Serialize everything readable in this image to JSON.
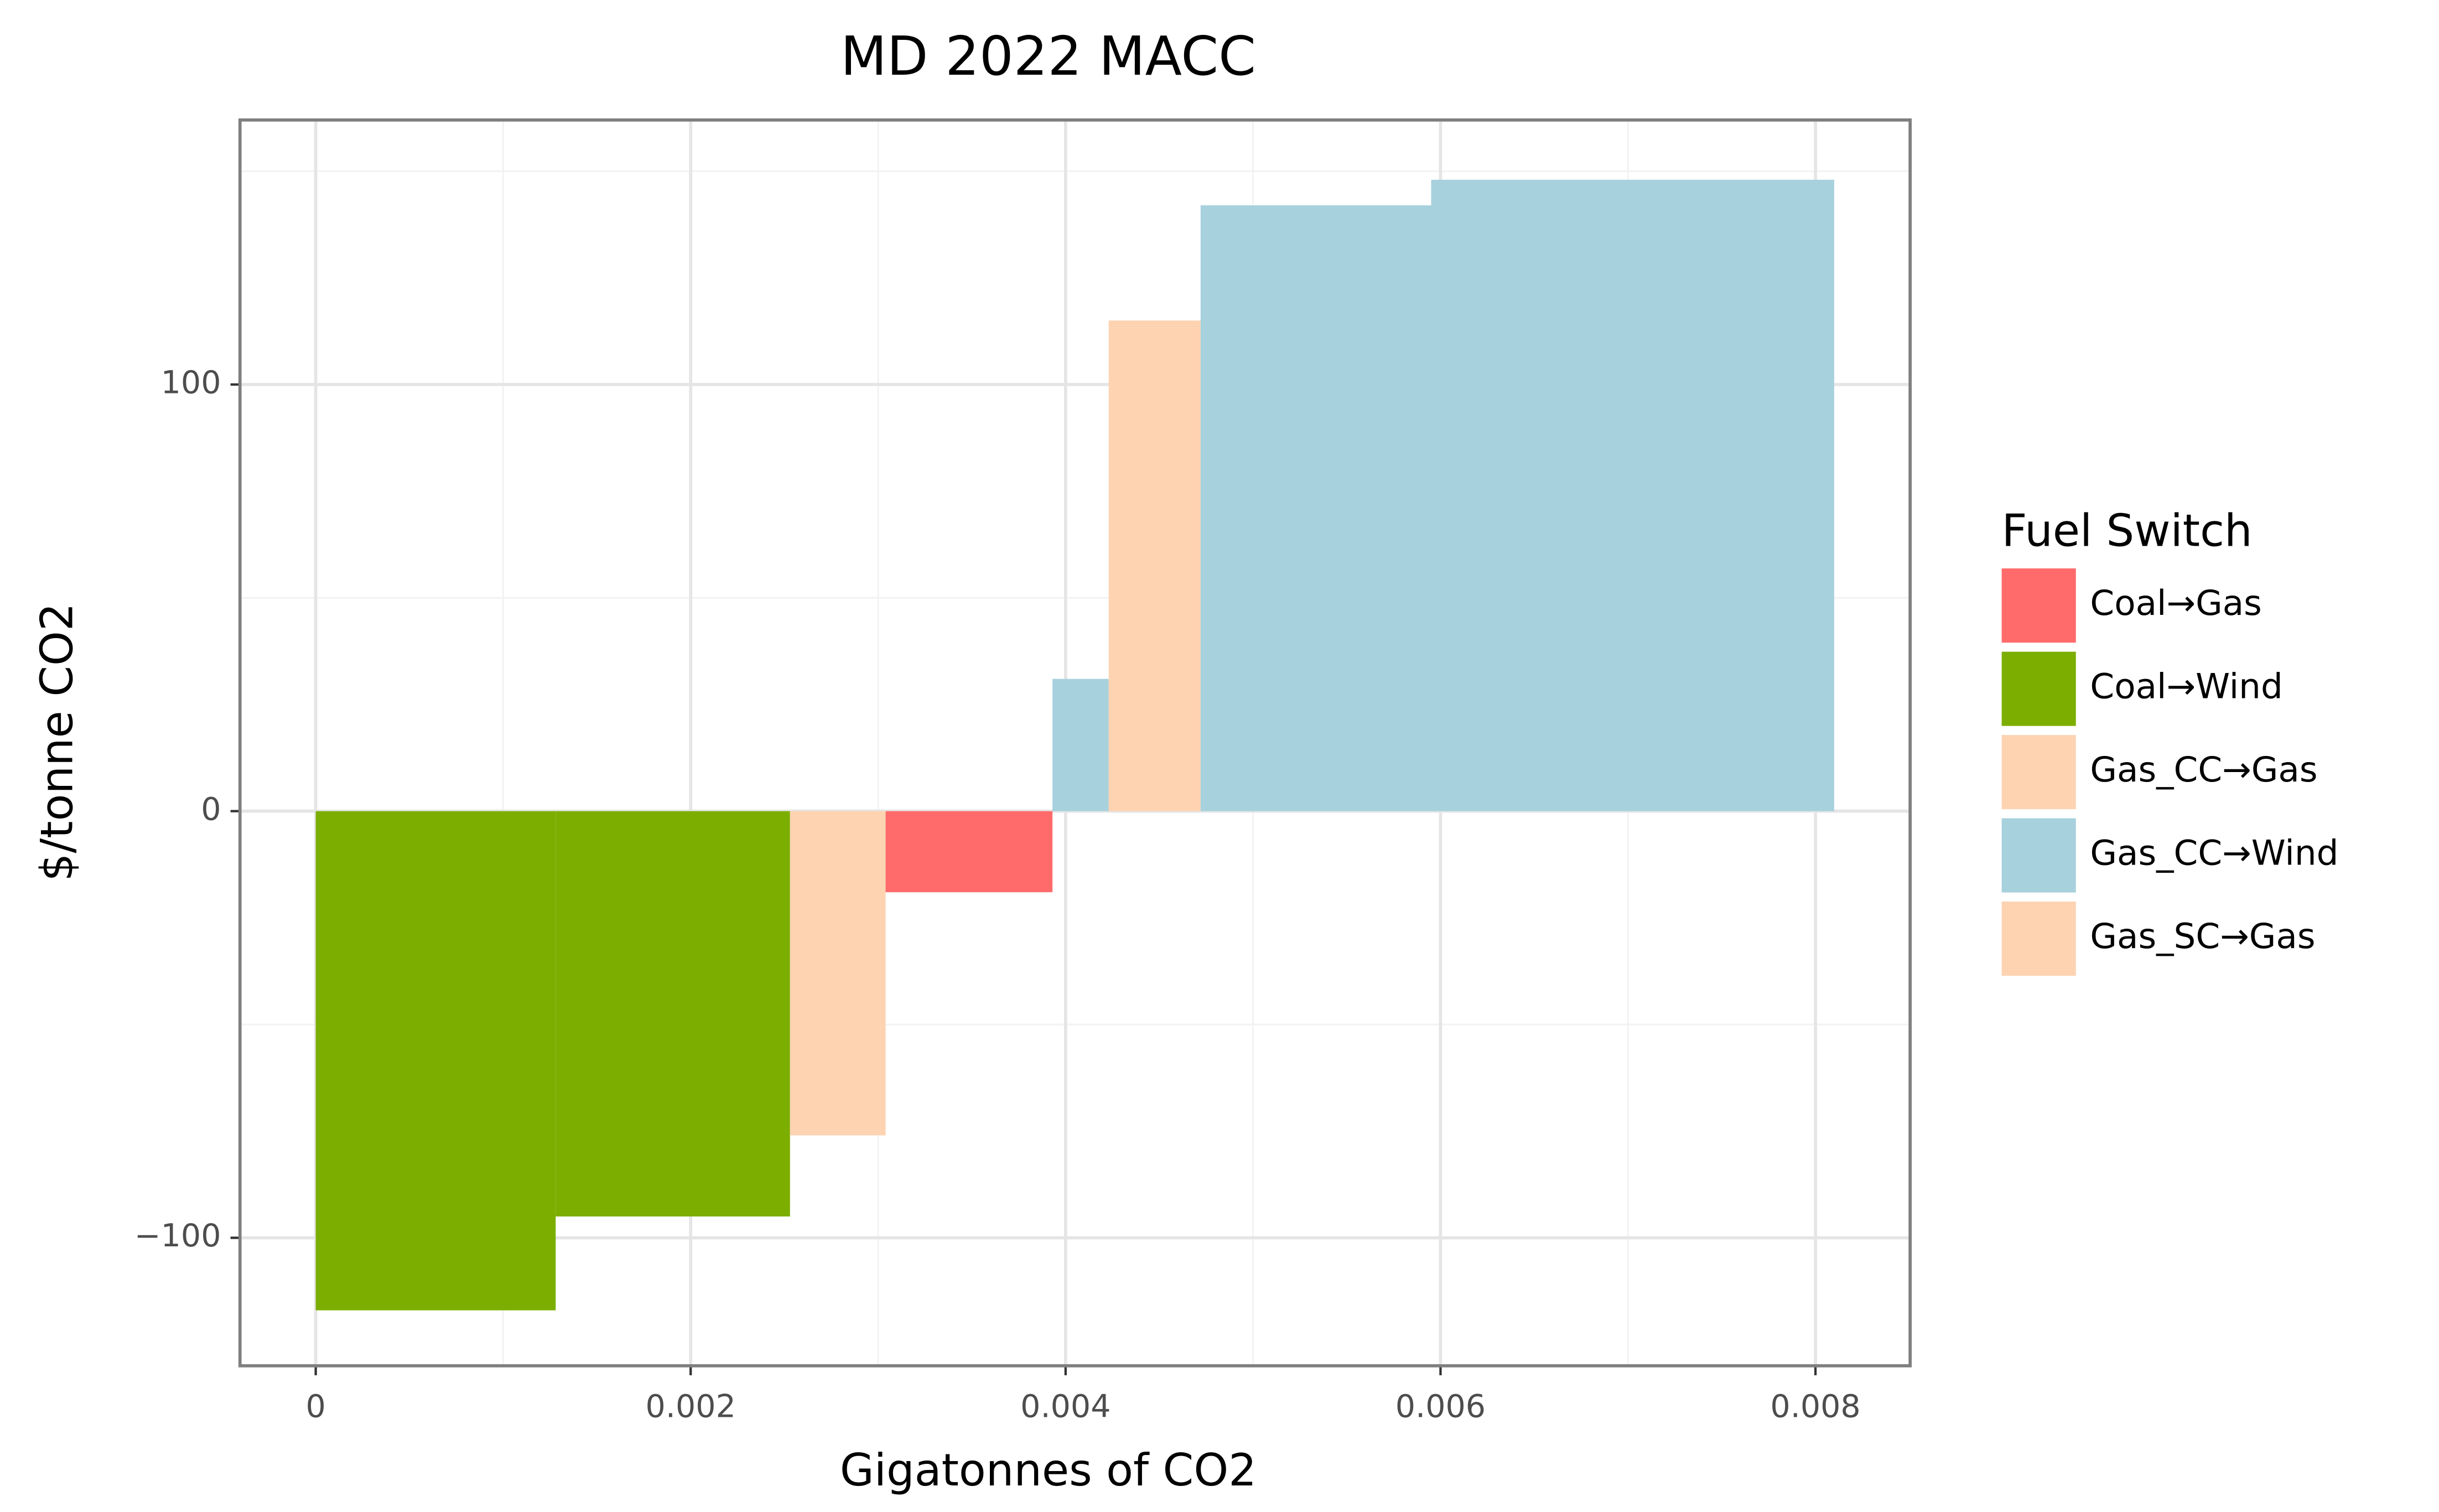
{
  "chart_data": {
    "type": "macc",
    "title": "MD 2022 MACC",
    "x_label": "Gigatonnes of CO2",
    "y_label": "$/tonne CO2",
    "legend_title": "Fuel Switch",
    "series": [
      {
        "name": "Coal→Gas",
        "color": "#ff6b6b"
      },
      {
        "name": "Coal→Wind",
        "color": "#7cae00"
      },
      {
        "name": "Gas_CC→Gas",
        "color": "#fdd3b2"
      },
      {
        "name": "Gas_CC→Wind",
        "color": "#a7d1dd"
      },
      {
        "name": "Gas_SC→Gas",
        "color": "#fdd3b2"
      }
    ],
    "bars": [
      {
        "switch": "Coal→Wind",
        "width": 0.00128,
        "value": -117
      },
      {
        "switch": "Coal→Wind",
        "width": 0.00125,
        "value": -95
      },
      {
        "switch": "Gas_SC→Gas",
        "width": 0.00051,
        "value": -76
      },
      {
        "switch": "Coal→Gas",
        "width": 0.00089,
        "value": -19
      },
      {
        "switch": "Gas_CC→Wind",
        "width": 0.0003,
        "value": 31
      },
      {
        "switch": "Gas_CC→Gas",
        "width": 0.00049,
        "value": 115
      },
      {
        "switch": "Gas_CC→Wind",
        "width": 0.00123,
        "value": 142
      },
      {
        "switch": "Gas_CC→Wind",
        "width": 0.00215,
        "value": 148
      }
    ],
    "xlim": [
      -0.000404,
      0.008505
    ],
    "ylim": [
      -130,
      162
    ],
    "xticks": [
      0,
      0.002,
      0.004,
      0.006,
      0.008
    ],
    "yticks": [
      {
        "value": -100,
        "label": "−100"
      },
      0,
      100
    ],
    "minor_xticks": [
      0.001,
      0.003,
      0.005,
      0.007
    ],
    "minor_yticks": [
      -50,
      50,
      150
    ],
    "grid": true
  }
}
